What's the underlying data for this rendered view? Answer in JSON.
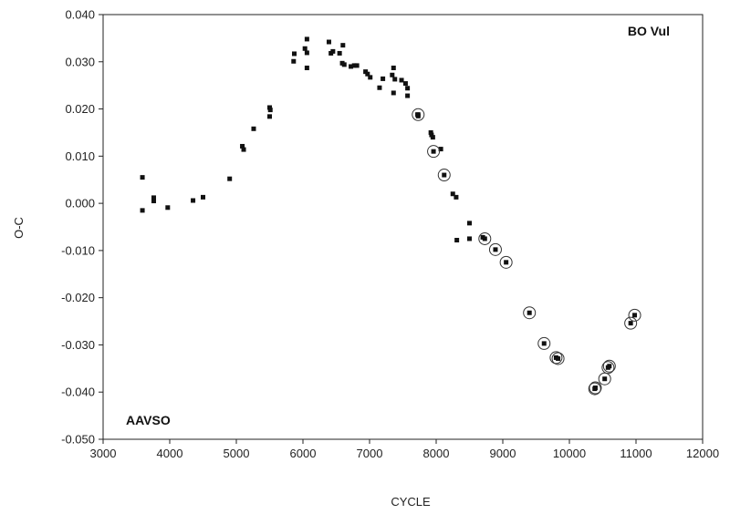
{
  "chart_data": {
    "type": "scatter",
    "title": "",
    "xlabel": "CYCLE",
    "ylabel": "O-C",
    "xlim": [
      3000,
      12000
    ],
    "ylim": [
      -0.05,
      0.04
    ],
    "x_ticks": [
      "3000",
      "4000",
      "5000",
      "6000",
      "7000",
      "8000",
      "9000",
      "10000",
      "11000",
      "12000"
    ],
    "y_ticks": [
      "0.040",
      "0.030",
      "0.020",
      "0.010",
      "0.000",
      "-0.010",
      "-0.020",
      "-0.030",
      "-0.040",
      "-0.050"
    ],
    "grid": false,
    "annotations": [
      {
        "text": "BO Vul",
        "position": "top-right"
      },
      {
        "text": "AAVSO",
        "position": "bottom-left"
      }
    ],
    "series": [
      {
        "marker": "filled-square",
        "points": [
          [
            3590,
            0.0055
          ],
          [
            3590,
            -0.0015
          ],
          [
            3760,
            0.0012
          ],
          [
            3760,
            0.0005
          ],
          [
            3970,
            -0.0009
          ],
          [
            4350,
            0.0006
          ],
          [
            4500,
            0.0013
          ],
          [
            4900,
            0.0052
          ],
          [
            5090,
            0.0121
          ],
          [
            5110,
            0.0114
          ],
          [
            5260,
            0.0158
          ],
          [
            5500,
            0.0203
          ],
          [
            5510,
            0.0198
          ],
          [
            5500,
            0.0184
          ],
          [
            5860,
            0.0301
          ],
          [
            5870,
            0.0317
          ],
          [
            6030,
            0.0328
          ],
          [
            6060,
            0.0348
          ],
          [
            6060,
            0.0319
          ],
          [
            6060,
            0.0287
          ],
          [
            6390,
            0.0342
          ],
          [
            6420,
            0.0318
          ],
          [
            6450,
            0.0322
          ],
          [
            6550,
            0.0318
          ],
          [
            6590,
            0.0297
          ],
          [
            6600,
            0.0335
          ],
          [
            6620,
            0.0294
          ],
          [
            6720,
            0.029
          ],
          [
            6770,
            0.0292
          ],
          [
            6810,
            0.0292
          ],
          [
            6940,
            0.0279
          ],
          [
            6970,
            0.0274
          ],
          [
            7010,
            0.0267
          ],
          [
            7150,
            0.0245
          ],
          [
            7200,
            0.0264
          ],
          [
            7340,
            0.0272
          ],
          [
            7360,
            0.0287
          ],
          [
            7380,
            0.0263
          ],
          [
            7360,
            0.0234
          ],
          [
            7480,
            0.0261
          ],
          [
            7540,
            0.0254
          ],
          [
            7570,
            0.0244
          ],
          [
            7570,
            0.0228
          ],
          [
            7720,
            0.0188
          ],
          [
            7730,
            0.0185
          ],
          [
            7920,
            0.015
          ],
          [
            7930,
            0.0145
          ],
          [
            7950,
            0.014
          ],
          [
            8070,
            0.0115
          ],
          [
            8250,
            0.002
          ],
          [
            8310,
            -0.0078
          ],
          [
            8300,
            0.0013
          ],
          [
            8500,
            -0.0075
          ],
          [
            8500,
            -0.0042
          ],
          [
            8700,
            -0.0072
          ]
        ]
      },
      {
        "marker": "filled-square-circled",
        "points": [
          [
            7730,
            0.0188
          ],
          [
            7960,
            0.011
          ],
          [
            8120,
            0.006
          ],
          [
            8730,
            -0.0075
          ],
          [
            8890,
            -0.0098
          ],
          [
            9050,
            -0.0125
          ],
          [
            9400,
            -0.0232
          ],
          [
            9620,
            -0.0297
          ],
          [
            9800,
            -0.0327
          ],
          [
            9830,
            -0.0329
          ],
          [
            10380,
            -0.0393
          ],
          [
            10390,
            -0.0391
          ],
          [
            10530,
            -0.0372
          ],
          [
            10580,
            -0.0348
          ],
          [
            10600,
            -0.0345
          ],
          [
            10920,
            -0.0254
          ],
          [
            10980,
            -0.0237
          ]
        ]
      }
    ]
  }
}
